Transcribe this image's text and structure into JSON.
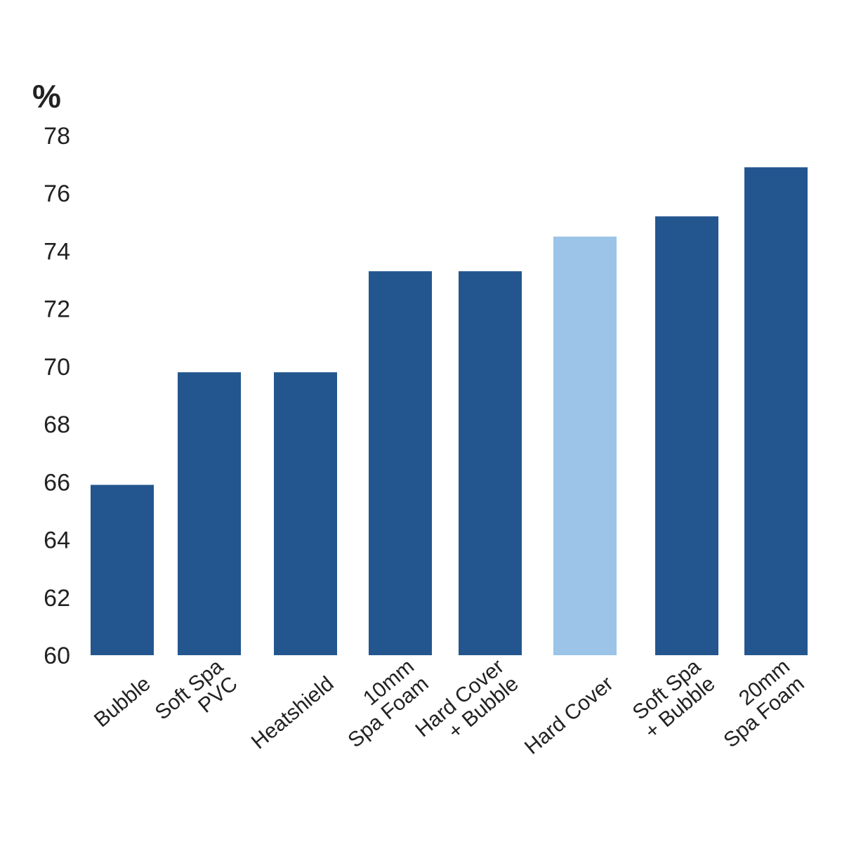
{
  "chart_data": {
    "type": "bar",
    "title": "",
    "xlabel": "",
    "ylabel": "%",
    "ylim": [
      60,
      78
    ],
    "yticks": [
      60,
      62,
      64,
      66,
      68,
      70,
      72,
      74,
      76,
      78
    ],
    "grid": false,
    "legend": "none",
    "categories": [
      "Bubble",
      "Soft Spa PVC",
      "Heatshield",
      "10mm Spa Foam",
      "Hard Cover + Bubble",
      "Hard Cover",
      "Soft Spa + Bubble",
      "20mm Spa Foam"
    ],
    "category_lines": [
      [
        "Bubble"
      ],
      [
        "Soft Spa",
        "PVC"
      ],
      [
        "Heatshield"
      ],
      [
        "10mm",
        "Spa Foam"
      ],
      [
        "Hard Cover",
        "+ Bubble"
      ],
      [
        "Hard Cover"
      ],
      [
        "Soft Spa",
        "+ Bubble"
      ],
      [
        "20mm",
        "Spa Foam"
      ]
    ],
    "values": [
      65.9,
      69.8,
      69.8,
      73.3,
      73.3,
      74.5,
      75.2,
      76.9
    ],
    "colors": [
      "#23568e",
      "#23568e",
      "#23568e",
      "#23568e",
      "#23568e",
      "#9bc4e8",
      "#23568e",
      "#23568e"
    ]
  }
}
